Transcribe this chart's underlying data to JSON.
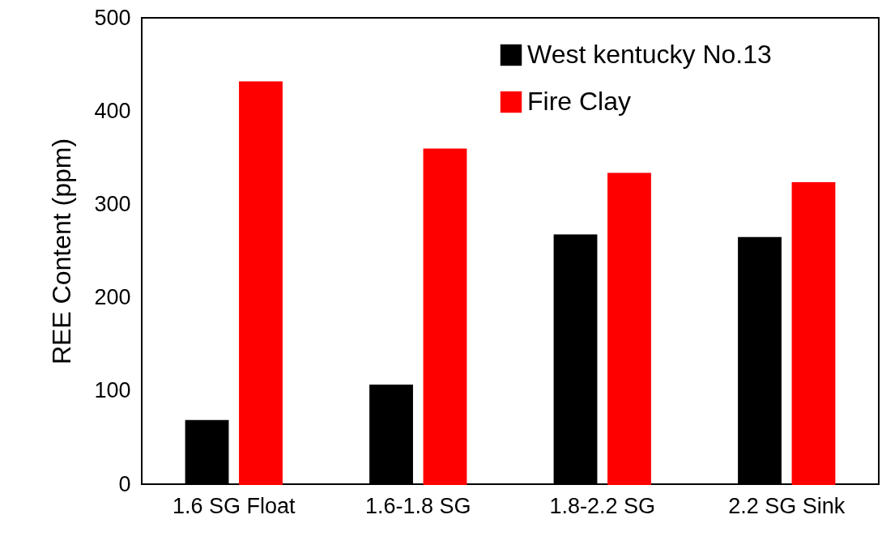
{
  "chart_data": {
    "type": "bar",
    "ylabel": "REE Content (ppm)",
    "categories": [
      "1.6 SG Float",
      "1.6-1.8 SG",
      "1.8-2.2 SG",
      "2.2 SG Sink"
    ],
    "series": [
      {
        "name": "West kentucky No.13",
        "color": "#000000",
        "values": [
          68,
          106,
          267,
          264
        ]
      },
      {
        "name": "Fire Clay",
        "color": "#ff0000",
        "values": [
          431,
          359,
          333,
          323
        ]
      }
    ],
    "ylim": [
      0,
      500
    ],
    "yticks": [
      0,
      100,
      200,
      300,
      400,
      500
    ],
    "grid": false,
    "legend": "top right"
  }
}
